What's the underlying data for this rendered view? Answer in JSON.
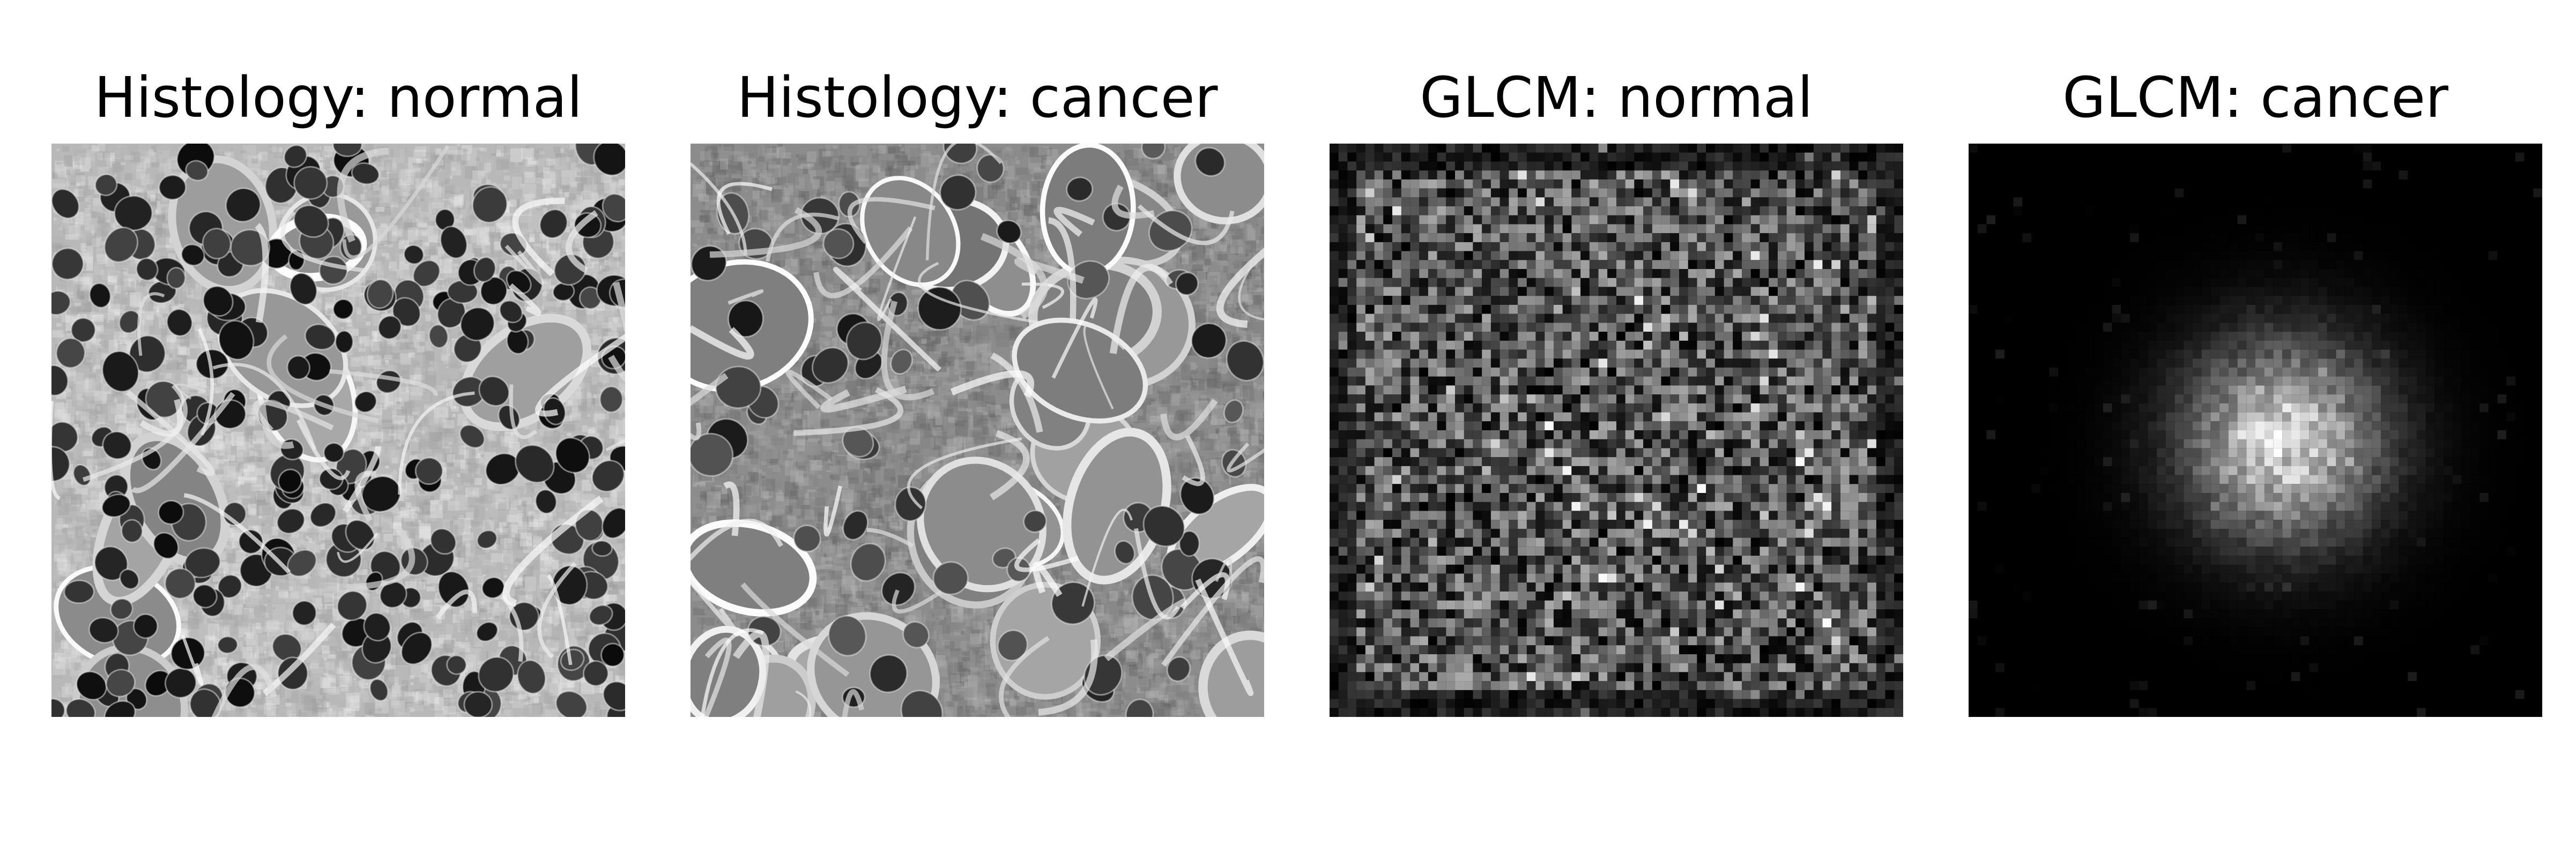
{
  "panels": [
    {
      "title": "Histology: normal",
      "kind": "histology-normal",
      "background": "#b8b8b8"
    },
    {
      "title": "Histology: cancer",
      "kind": "histology-cancer",
      "background": "#8c8c8c"
    },
    {
      "title": "GLCM: normal",
      "kind": "glcm-normal",
      "background": "#000000"
    },
    {
      "title": "GLCM: cancer",
      "kind": "glcm-cancer",
      "background": "#000000"
    }
  ]
}
